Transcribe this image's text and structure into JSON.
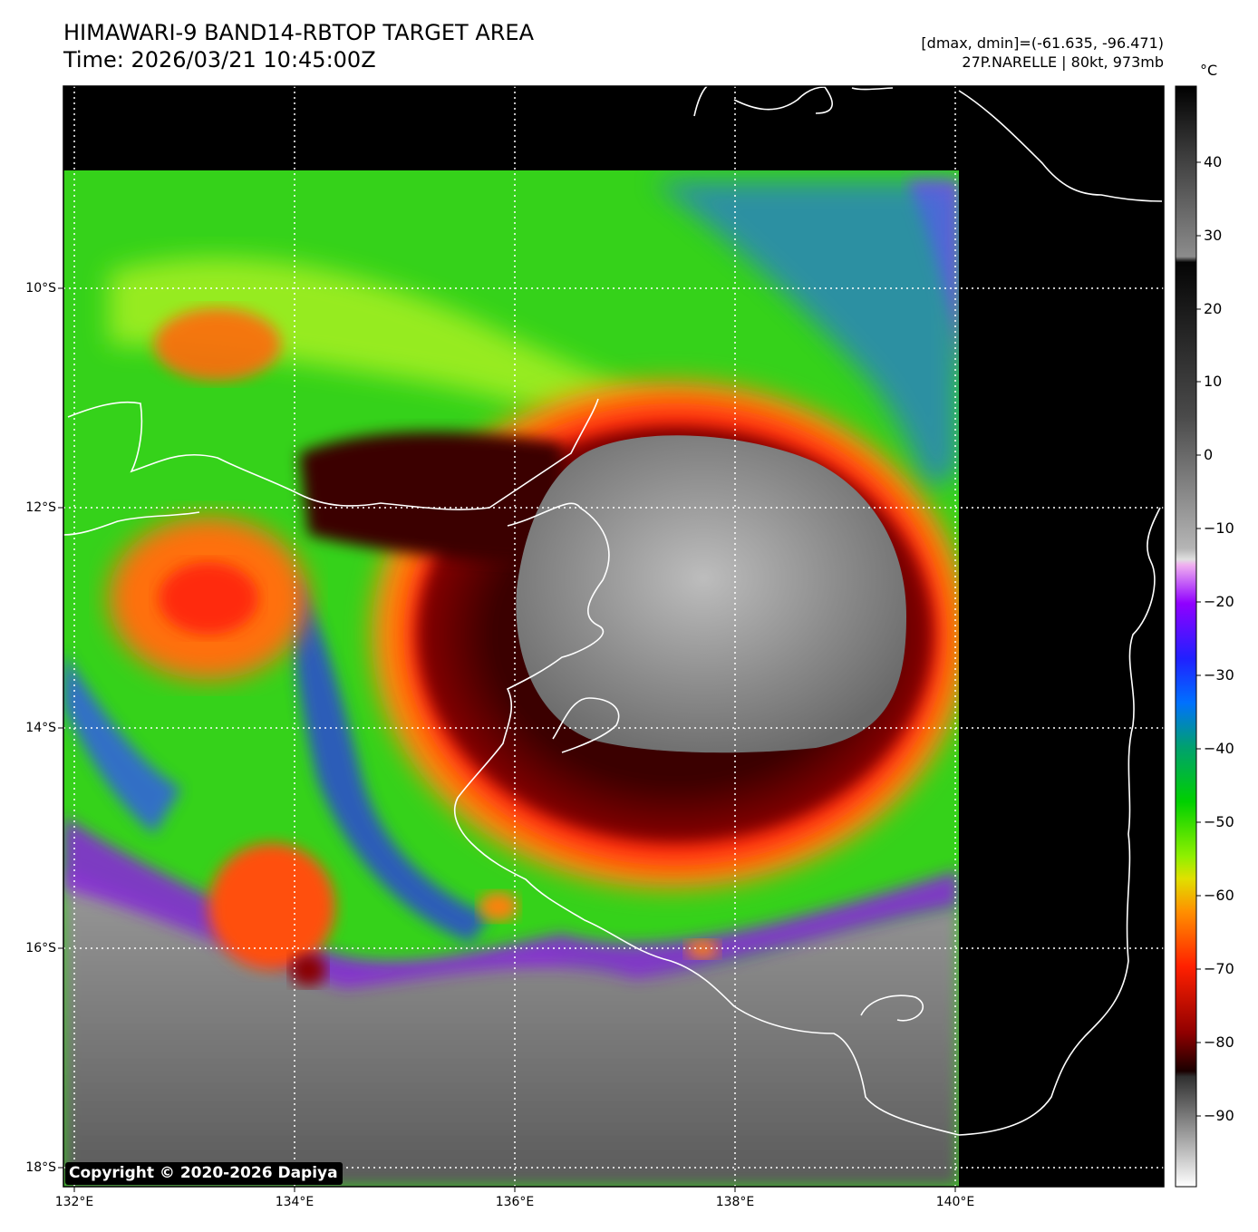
{
  "header": {
    "title_line1": "HIMAWARI-9 BAND14-RBTOP TARGET AREA",
    "title_line2": "Time: 2026/03/21 10:45:00Z",
    "range_info": "[dmax, dmin]=(-61.635, -96.471)",
    "storm_info": "27P.NARELLE | 80kt, 973mb"
  },
  "map": {
    "lat_labels": [
      "10°S",
      "12°S",
      "14°S",
      "16°S",
      "18°S"
    ],
    "lon_labels": [
      "132°E",
      "134°E",
      "136°E",
      "138°E",
      "140°E"
    ],
    "copyright": "Copyright © 2020-2026 Dapiya"
  },
  "colorbar": {
    "unit": "°C",
    "ticks": [
      "40",
      "30",
      "20",
      "10",
      "0",
      "−10",
      "−20",
      "−30",
      "−40",
      "−50",
      "−60",
      "−70",
      "−80",
      "−90"
    ]
  }
}
